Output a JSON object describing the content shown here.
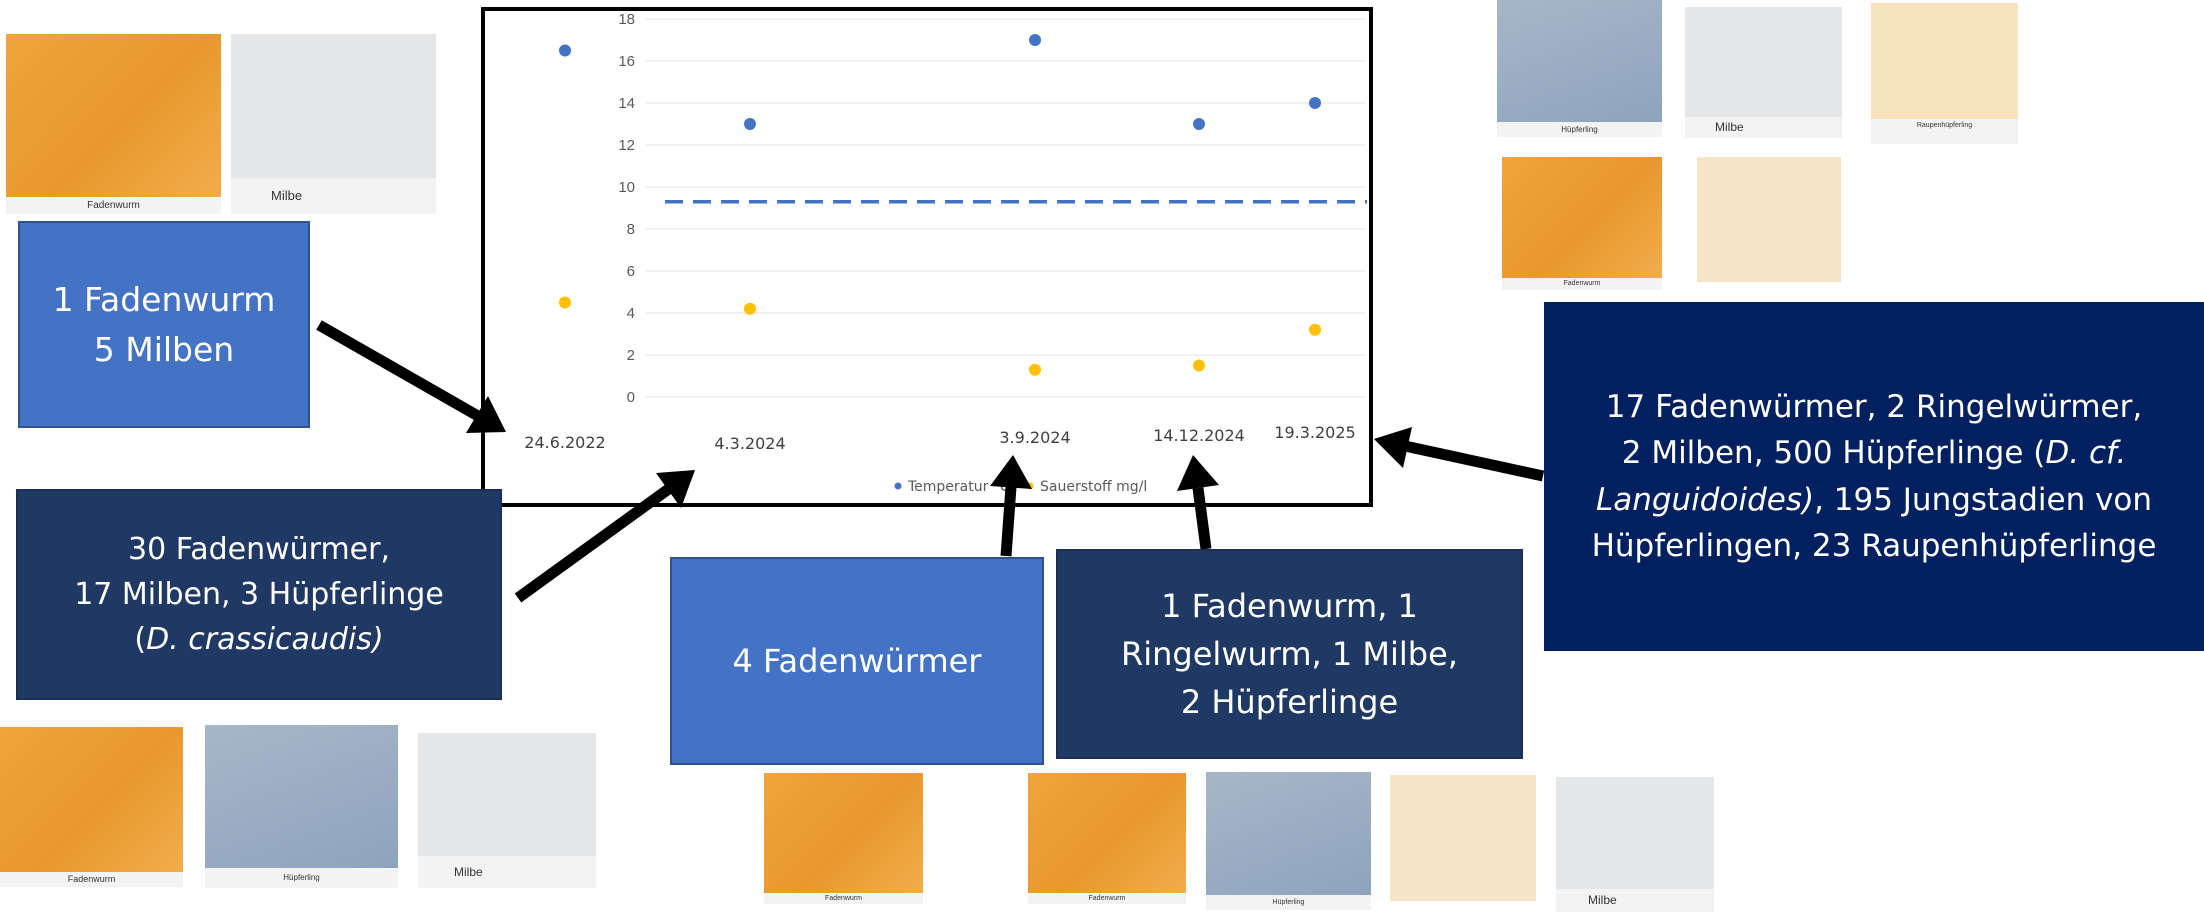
{
  "colors": {
    "light_box": "#4472c4",
    "dark_box": "#203864",
    "navy_box": "#002060",
    "temperature": "#4472c4",
    "oxygen": "#ffc000",
    "arrow": "#000000"
  },
  "thumbnails": {
    "top_left": [
      {
        "icon": "nematode-photo",
        "caption": "Fadenwurm"
      },
      {
        "icon": "mite-photo",
        "caption": "Milbe"
      }
    ],
    "top_right": [
      {
        "icon": "copepod-photo",
        "caption": "Hüpferling"
      },
      {
        "icon": "mite-photo",
        "caption": "Milbe"
      },
      {
        "icon": "caterpillar-copepod-photo",
        "caption": "Raupenhüpferling"
      },
      {
        "icon": "nematode-photo",
        "caption": "Fadenwurm"
      },
      {
        "icon": "annelid-photo",
        "caption": ""
      }
    ],
    "bottom_left": [
      {
        "icon": "nematode-photo",
        "caption": "Fadenwurm"
      },
      {
        "icon": "copepod-photo",
        "caption": "Hüpferling"
      },
      {
        "icon": "mite-photo",
        "caption": "Milbe"
      }
    ],
    "bottom_center": [
      {
        "icon": "nematode-photo",
        "caption": "Fadenwurm"
      }
    ],
    "bottom_right": [
      {
        "icon": "nematode-photo",
        "caption": "Fadenwurm"
      },
      {
        "icon": "copepod-photo",
        "caption": "Hüpferling"
      },
      {
        "icon": "annelid-photo",
        "caption": ""
      },
      {
        "icon": "mite-photo",
        "caption": "Milbe"
      }
    ]
  },
  "boxes": {
    "box_2022": {
      "line1": "1 Fadenwurm",
      "line2": "5 Milben"
    },
    "box_2024_03": {
      "line1": "30 Fadenwürmer,",
      "line2": "17 Milben, 3 Hüpferlinge",
      "line3_pre": "(",
      "line3_italic": "D. crassicaudis)"
    },
    "box_2024_09": {
      "line1": "4 Fadenwürmer"
    },
    "box_2024_12": {
      "line1": "1 Fadenwurm, 1",
      "line2": "Ringelwurm, 1 Milbe,",
      "line3": "2 Hüpferlinge"
    },
    "box_2025": {
      "line1": "17 Fadenwürmer, 2 Ringelwürmer,",
      "line2_pre": "2 Milben, 500 Hüpferlinge (",
      "line2_italic": "D. cf.",
      "line3_italic": "Languidoides)",
      "line3_post": ", 195  Jungstadien von",
      "line4": "Hüpferlingen, 23 Raupenhüpferlinge"
    }
  },
  "chart_data": {
    "type": "scatter",
    "categories": [
      "24.6.2022",
      "4.3.2024",
      "3.9.2024",
      "14.12.2024",
      "19.3.2025"
    ],
    "ylim": [
      0,
      18
    ],
    "yticks": [
      0,
      2,
      4,
      6,
      8,
      10,
      12,
      14,
      16,
      18
    ],
    "grid": true,
    "legend_position": "bottom",
    "series": [
      {
        "name": "Temperatur °C",
        "color": "#4472c4",
        "values": [
          16.5,
          13,
          17,
          13,
          14
        ]
      },
      {
        "name": "Sauerstoff mg/l",
        "color": "#ffc000",
        "values": [
          4.5,
          4.2,
          1.3,
          1.5,
          3.2
        ]
      }
    ],
    "reference_line": {
      "value": 9.3,
      "color": "#4472c4",
      "style": "dashed"
    }
  }
}
